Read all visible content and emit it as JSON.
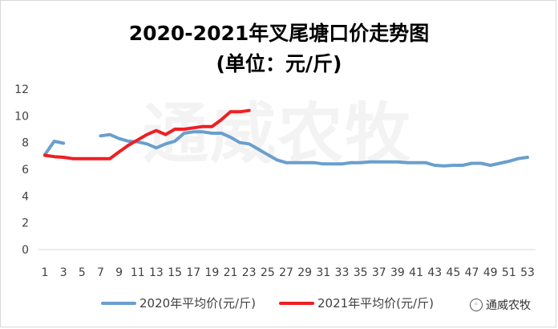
{
  "chart_data": {
    "type": "line",
    "title": "2020-2021年叉尾塘口价走势图",
    "subtitle": "(单位：元/斤)",
    "xlabel": "",
    "ylabel": "",
    "ylim": [
      0,
      12
    ],
    "yticks": [
      0,
      2,
      4,
      6,
      8,
      10,
      12
    ],
    "xlim": [
      1,
      53
    ],
    "xticks": [
      1,
      3,
      5,
      7,
      9,
      11,
      13,
      15,
      17,
      19,
      21,
      23,
      25,
      27,
      29,
      31,
      33,
      35,
      37,
      39,
      41,
      43,
      45,
      47,
      49,
      51,
      53
    ],
    "grid": false,
    "legend": "bottom",
    "watermark": "通威农牧",
    "series": [
      {
        "name": "2020年平均价(元/斤)",
        "color": "#6a9fcd",
        "x": [
          1,
          2,
          3,
          7,
          8,
          9,
          10,
          11,
          12,
          13,
          14,
          15,
          16,
          17,
          18,
          19,
          20,
          21,
          22,
          23,
          24,
          25,
          26,
          27,
          28,
          29,
          30,
          31,
          32,
          33,
          34,
          35,
          36,
          37,
          38,
          39,
          40,
          41,
          42,
          43,
          44,
          45,
          46,
          47,
          48,
          49,
          50,
          51,
          52,
          53
        ],
        "values": [
          7.1,
          8.1,
          7.95,
          8.5,
          8.6,
          8.3,
          8.1,
          8.05,
          7.9,
          7.6,
          7.9,
          8.1,
          8.7,
          8.8,
          8.8,
          8.7,
          8.7,
          8.4,
          8.0,
          7.9,
          7.5,
          7.1,
          6.7,
          6.5,
          6.5,
          6.5,
          6.5,
          6.4,
          6.4,
          6.4,
          6.5,
          6.5,
          6.55,
          6.55,
          6.55,
          6.55,
          6.5,
          6.5,
          6.5,
          6.3,
          6.25,
          6.3,
          6.3,
          6.45,
          6.45,
          6.3,
          6.45,
          6.6,
          6.8,
          6.9
        ]
      },
      {
        "name": "2021年平均价(元/斤)",
        "color": "#ee1f23",
        "x": [
          1,
          2,
          3,
          4,
          5,
          6,
          7,
          8,
          9,
          10,
          11,
          12,
          13,
          14,
          15,
          16,
          17,
          18,
          19,
          20,
          21,
          22,
          23
        ],
        "values": [
          7.05,
          6.95,
          6.9,
          6.8,
          6.8,
          6.8,
          6.8,
          6.8,
          7.3,
          7.8,
          8.2,
          8.6,
          8.9,
          8.6,
          9.0,
          9.0,
          9.1,
          9.2,
          9.2,
          9.7,
          10.3,
          10.3,
          10.4
        ]
      }
    ]
  },
  "source": {
    "icon": "wechat-icon",
    "label": "通威农牧"
  }
}
